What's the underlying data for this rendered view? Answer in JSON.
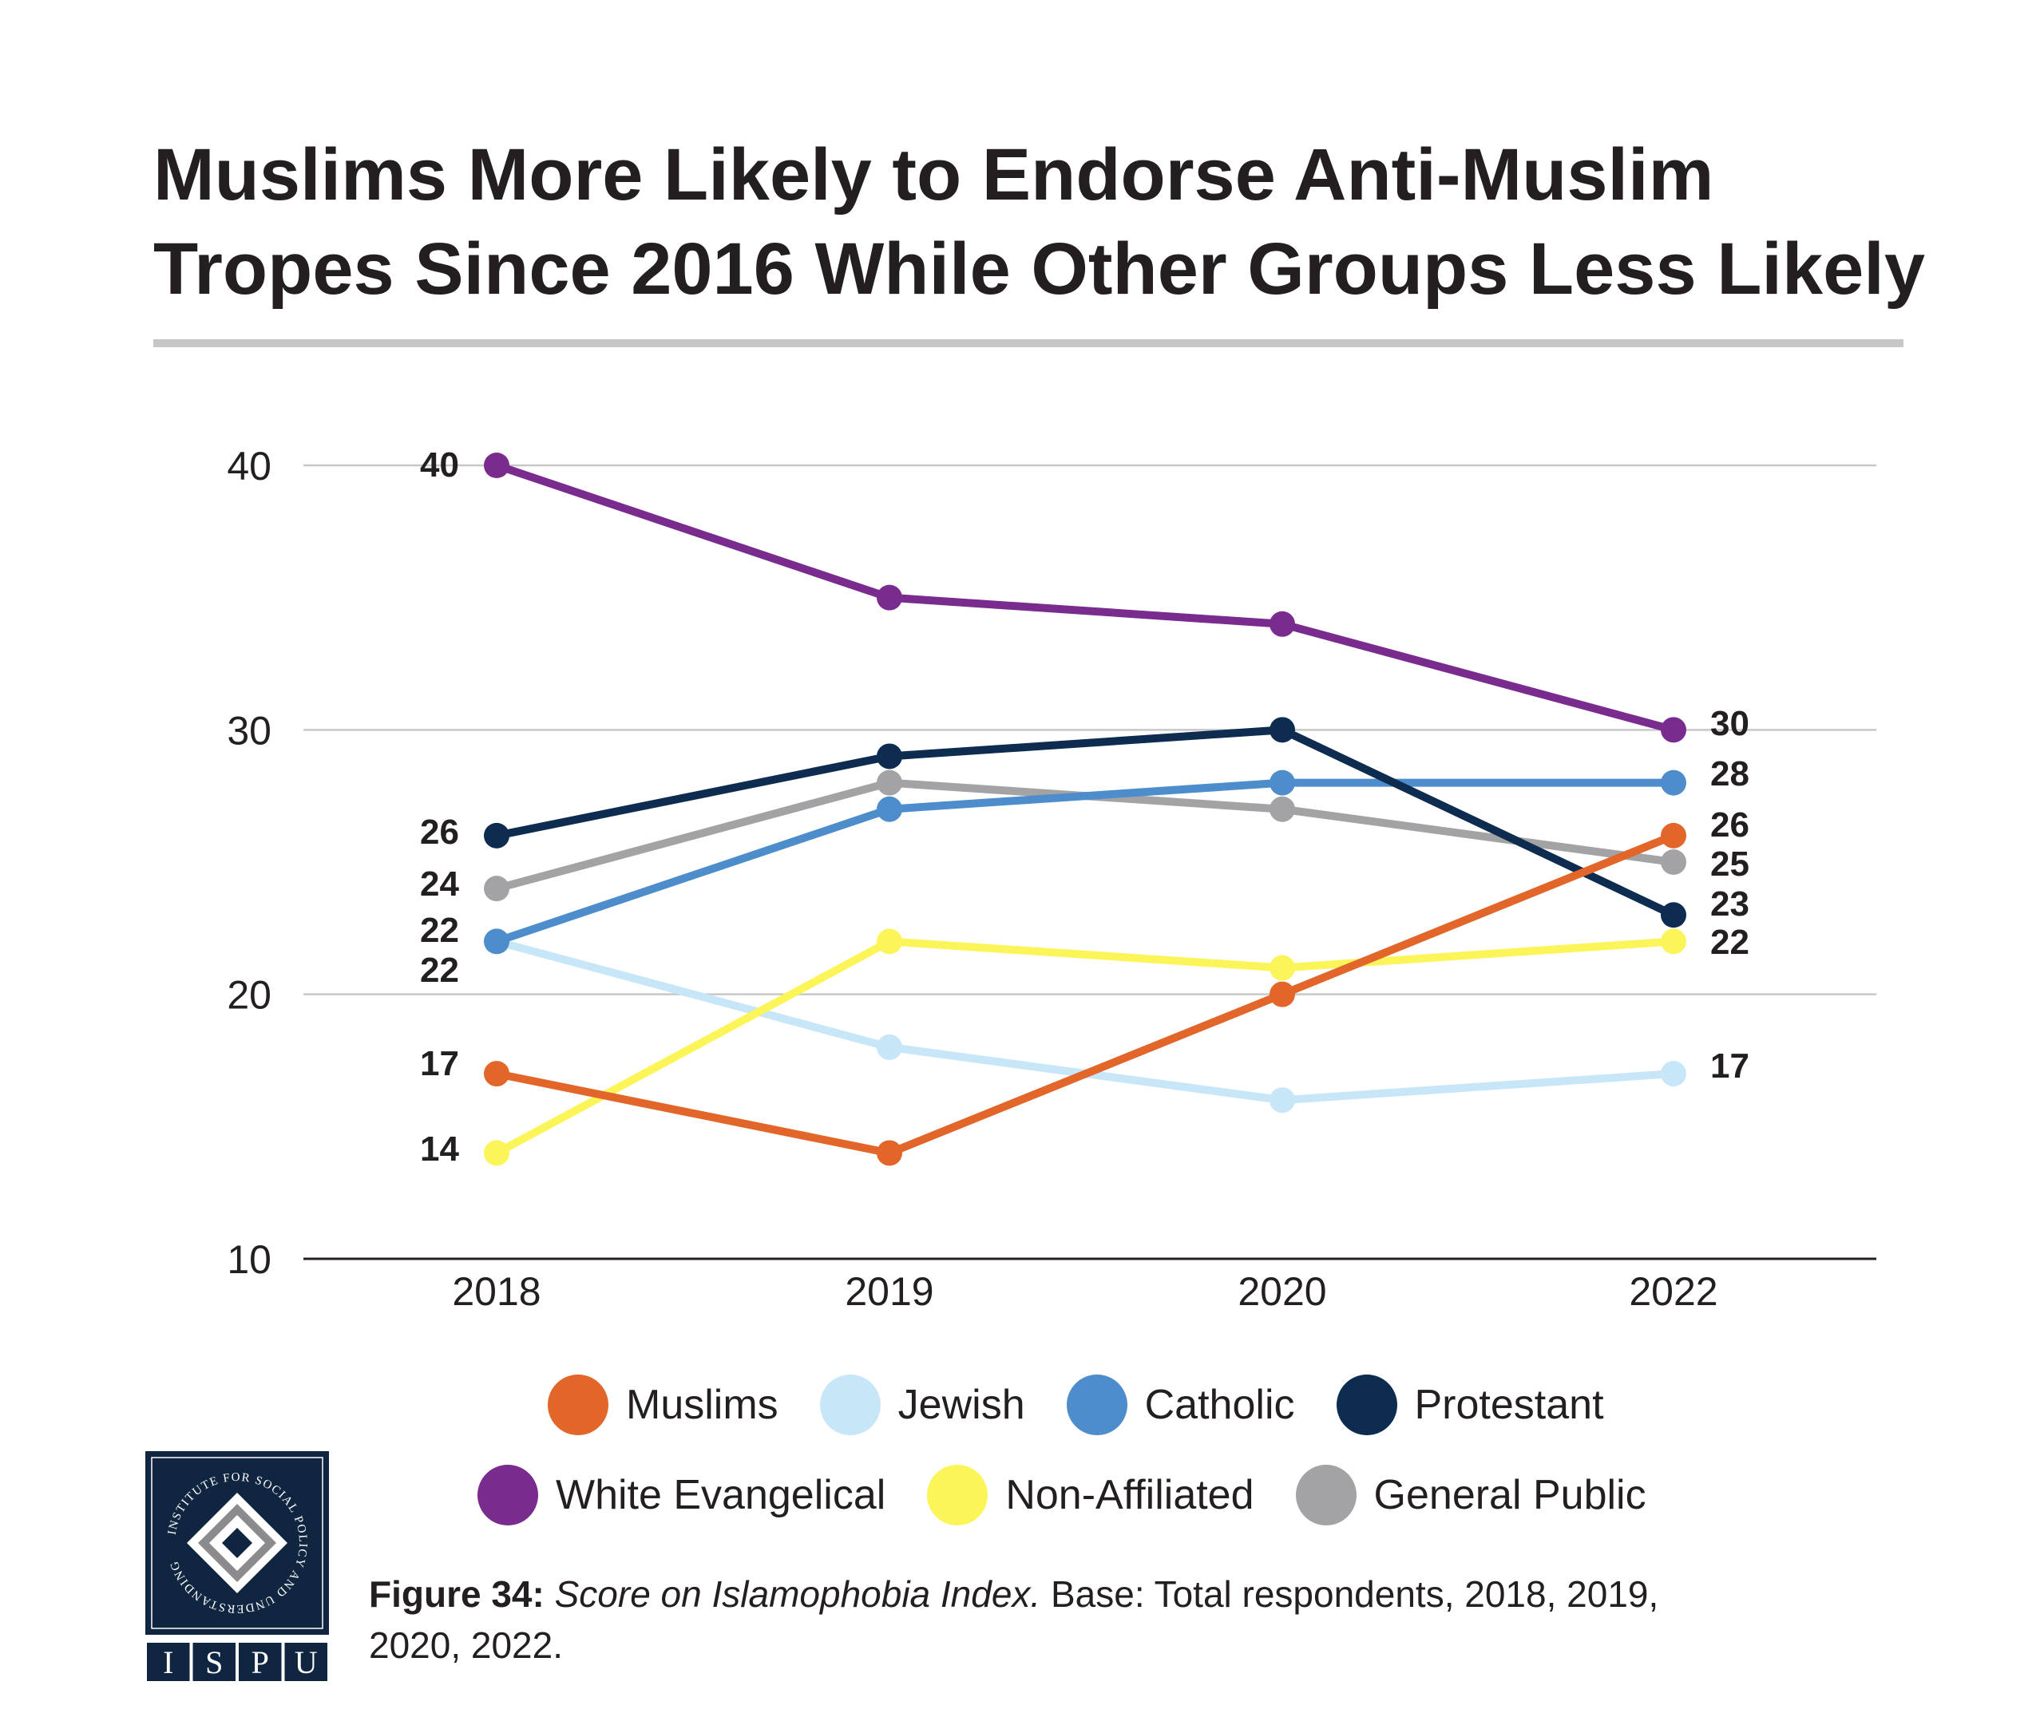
{
  "title_line1": "Muslims More Likely to Endorse Anti-Muslim",
  "title_line2": "Tropes Since 2016 While Other Groups Less Likely",
  "chart_data": {
    "type": "line",
    "x": [
      "2018",
      "2019",
      "2020",
      "2022"
    ],
    "ylim": [
      10,
      40
    ],
    "yticks": [
      10,
      20,
      30,
      40
    ],
    "grid": true,
    "legend_placement": "bottom",
    "series": [
      {
        "name": "Muslims",
        "color": "#e2662a",
        "values": [
          17,
          14,
          20,
          26
        ]
      },
      {
        "name": "Jewish",
        "color": "#c7e6f8",
        "values": [
          22,
          18,
          16,
          17
        ]
      },
      {
        "name": "Catholic",
        "color": "#4e8dcb",
        "values": [
          22,
          27,
          28,
          28
        ]
      },
      {
        "name": "Protestant",
        "color": "#0e2c4f",
        "values": [
          26,
          29,
          30,
          23
        ]
      },
      {
        "name": "White Evangelical",
        "color": "#7a2b8e",
        "values": [
          40,
          35,
          34,
          30
        ]
      },
      {
        "name": "Non-Affiliated",
        "color": "#fbf55a",
        "values": [
          14,
          22,
          21,
          22
        ]
      },
      {
        "name": "General Public",
        "color": "#a3a3a5",
        "values": [
          24,
          28,
          27,
          25
        ]
      }
    ],
    "start_labels": [
      "40",
      "26",
      "24",
      "22",
      "22",
      "17",
      "14"
    ],
    "end_labels": [
      "30",
      "28",
      "26",
      "25",
      "23",
      "22",
      "17"
    ]
  },
  "legend": {
    "row1": [
      {
        "label": "Muslims",
        "color": "#e2662a"
      },
      {
        "label": "Jewish",
        "color": "#c7e6f8"
      },
      {
        "label": "Catholic",
        "color": "#4e8dcb"
      },
      {
        "label": "Protestant",
        "color": "#0e2c4f"
      }
    ],
    "row2": [
      {
        "label": "White Evangelical",
        "color": "#7a2b8e"
      },
      {
        "label": "Non-Affiliated",
        "color": "#fbf55a"
      },
      {
        "label": "General Public",
        "color": "#a3a3a5"
      }
    ]
  },
  "caption": {
    "figure": "Figure 34:",
    "title": "Score on Islamophobia Index.",
    "base": "Base: Total respondents, 2018, 2019,",
    "base_line2": "2020, 2022."
  },
  "logo": {
    "ring_text": "INSTITUTE FOR SOCIAL POLICY AND UNDERSTANDING",
    "letters": [
      "I",
      "S",
      "P",
      "U"
    ],
    "bg_color": "#0f2540"
  }
}
